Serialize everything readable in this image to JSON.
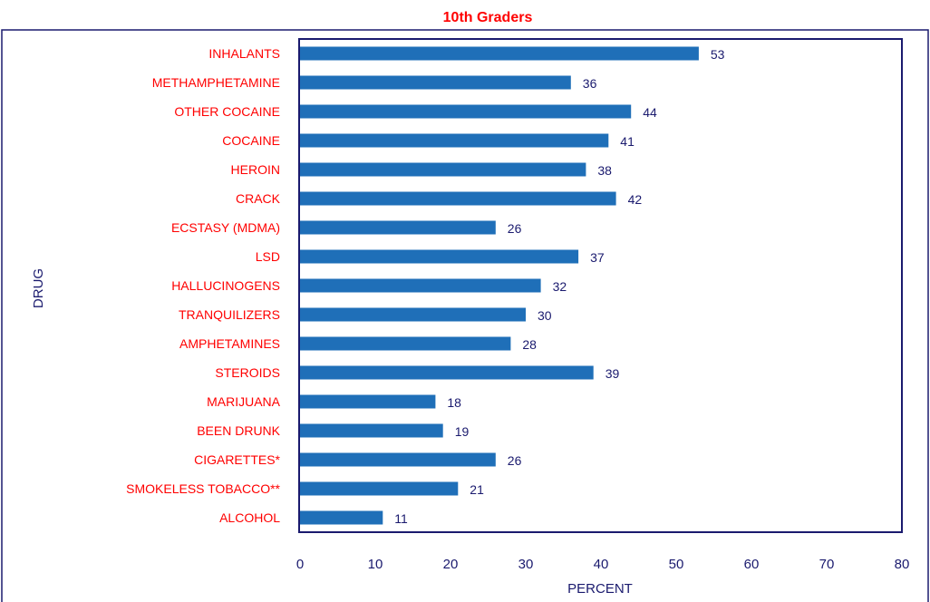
{
  "chart_data": {
    "type": "bar",
    "orientation": "horizontal",
    "title": "10th Graders",
    "xlabel": "PERCENT",
    "ylabel": "DRUG",
    "xlim": [
      0,
      80
    ],
    "xticks": [
      0,
      10,
      20,
      30,
      40,
      50,
      60,
      70,
      80
    ],
    "grid": false,
    "categories": [
      "INHALANTS",
      "METHAMPHETAMINE",
      "OTHER COCAINE",
      "COCAINE",
      "HEROIN",
      "CRACK",
      "ECSTASY (MDMA)",
      "LSD",
      "HALLUCINOGENS",
      "TRANQUILIZERS",
      "AMPHETAMINES",
      "STEROIDS",
      "MARIJUANA",
      "BEEN DRUNK",
      "CIGARETTES*",
      "SMOKELESS TOBACCO**",
      "ALCOHOL"
    ],
    "values": [
      53,
      36,
      44,
      41,
      38,
      42,
      26,
      37,
      32,
      30,
      28,
      39,
      18,
      19,
      26,
      21,
      11
    ]
  },
  "colors": {
    "bar": "#1f6fb8",
    "title": "#ff0000",
    "category_label": "#ff0000",
    "value_label": "#1a1a6e",
    "axis": "#1a1a6e",
    "border": "#1a1a6e"
  }
}
